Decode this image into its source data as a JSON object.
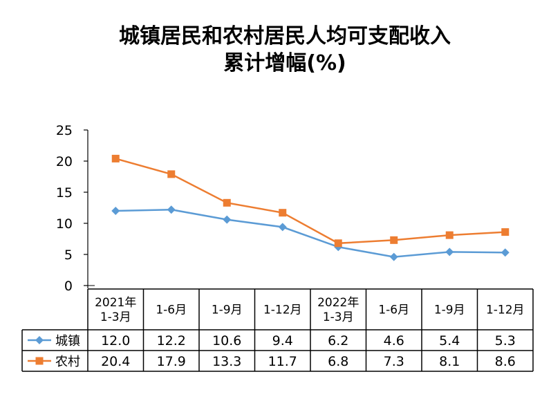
{
  "chart_data": {
    "type": "line",
    "title_lines": [
      "城镇居民和农村居民人均可支配收入",
      "累计增幅(%)"
    ],
    "categories": [
      [
        "2021年",
        "1-3月"
      ],
      [
        "1-6月"
      ],
      [
        "1-9月"
      ],
      [
        "1-12月"
      ],
      [
        "2022年",
        "1-3月"
      ],
      [
        "1-6月"
      ],
      [
        "1-9月"
      ],
      [
        "1-12月"
      ]
    ],
    "ylim": [
      0,
      25
    ],
    "yticks": [
      0,
      5,
      10,
      15,
      20,
      25
    ],
    "grid": false,
    "legend": "data-table-left",
    "series": [
      {
        "name": "城镇",
        "color": "#5B9BD5",
        "marker": "diamond",
        "values": [
          12.0,
          12.2,
          10.6,
          9.4,
          6.2,
          4.6,
          5.4,
          5.3
        ],
        "labels": [
          "12.0",
          "12.2",
          "10.6",
          "9.4",
          "6.2",
          "4.6",
          "5.4",
          "5.3"
        ]
      },
      {
        "name": "农村",
        "color": "#ED7D31",
        "marker": "square",
        "values": [
          20.4,
          17.9,
          13.3,
          11.7,
          6.8,
          7.3,
          8.1,
          8.6
        ],
        "labels": [
          "20.4",
          "17.9",
          "13.3",
          "11.7",
          "6.8",
          "7.3",
          "8.1",
          "8.6"
        ]
      }
    ]
  }
}
